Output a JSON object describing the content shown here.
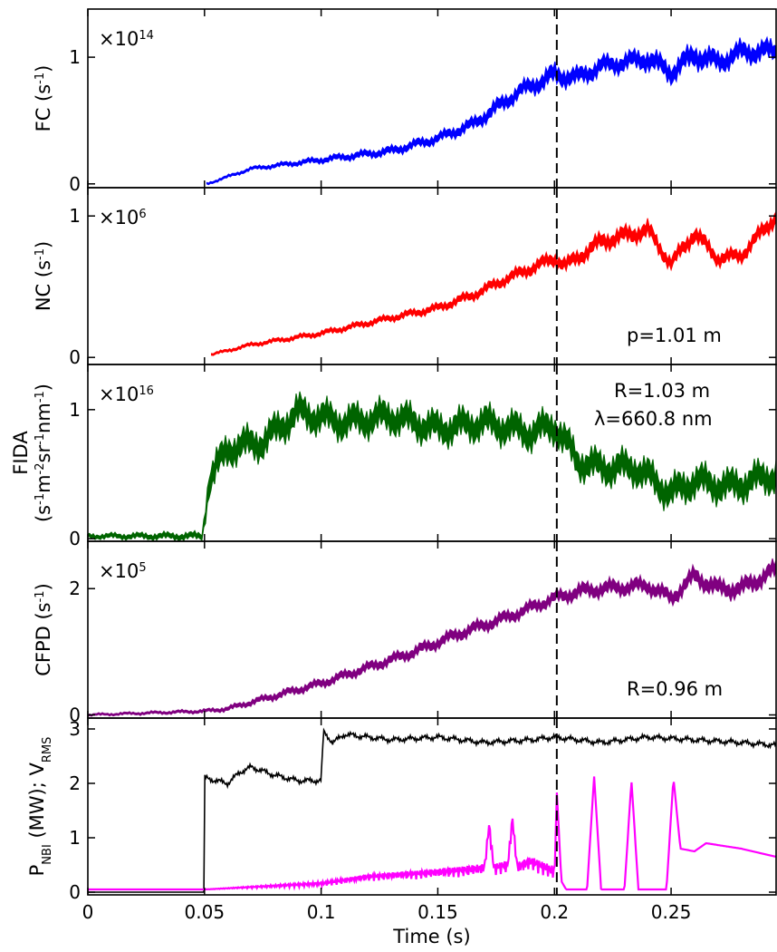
{
  "chart_data": [
    {
      "type": "area",
      "panel": "FC",
      "ylabel_main": "FC (s",
      "ylabel_sup": "-1",
      "ylabel_end": ")",
      "multiplier_base": "×10",
      "multiplier_exp": "14",
      "color": "#0000ff",
      "xlim": [
        0,
        0.295
      ],
      "ylim": [
        -0.03,
        1.38
      ],
      "yticks": [
        0,
        1
      ],
      "yticklabels": [
        "0",
        "1"
      ],
      "x": [
        0.051,
        0.07,
        0.1,
        0.13,
        0.15,
        0.165,
        0.175,
        0.185,
        0.2,
        0.21,
        0.22,
        0.23,
        0.24,
        0.25,
        0.26,
        0.27,
        0.28,
        0.295
      ],
      "values": [
        0.0,
        0.12,
        0.19,
        0.26,
        0.36,
        0.47,
        0.6,
        0.73,
        0.86,
        0.84,
        0.93,
        0.96,
        0.99,
        0.88,
        1.02,
        0.96,
        1.04,
        1.05
      ],
      "halfwidth": [
        0.01,
        0.015,
        0.025,
        0.035,
        0.04,
        0.05,
        0.06,
        0.06,
        0.08,
        0.07,
        0.07,
        0.07,
        0.08,
        0.08,
        0.09,
        0.08,
        0.08,
        0.08
      ]
    },
    {
      "type": "area",
      "panel": "NC",
      "ylabel_main": "NC (s",
      "ylabel_sup": "-1",
      "ylabel_end": ")",
      "multiplier_base": "×10",
      "multiplier_exp": "6",
      "annotation": "p=1.01 m",
      "color": "#ff0000",
      "xlim": [
        0,
        0.295
      ],
      "ylim": [
        -0.05,
        1.2
      ],
      "yticks": [
        0,
        1
      ],
      "yticklabels": [
        "0",
        "1"
      ],
      "x": [
        0.053,
        0.07,
        0.1,
        0.13,
        0.15,
        0.165,
        0.18,
        0.2,
        0.205,
        0.22,
        0.23,
        0.24,
        0.25,
        0.26,
        0.27,
        0.28,
        0.295
      ],
      "values": [
        0.02,
        0.09,
        0.17,
        0.28,
        0.35,
        0.44,
        0.56,
        0.7,
        0.65,
        0.82,
        0.86,
        0.9,
        0.66,
        0.88,
        0.7,
        0.72,
        1.0
      ],
      "halfwidth": [
        0.01,
        0.015,
        0.02,
        0.025,
        0.03,
        0.035,
        0.04,
        0.05,
        0.05,
        0.06,
        0.06,
        0.06,
        0.05,
        0.06,
        0.05,
        0.05,
        0.06
      ]
    },
    {
      "type": "area",
      "panel": "FIDA",
      "ylabel_line1": "FIDA",
      "ylabel_line2_parts": [
        "(s",
        "-1",
        "m",
        "-2",
        "sr",
        "-1",
        "nm",
        "-1",
        ")"
      ],
      "multiplier_base": "×10",
      "multiplier_exp": "16",
      "annotation_lines": [
        "R=1.03 m",
        "λ=660.8 nm"
      ],
      "color": "#006400",
      "xlim": [
        0,
        0.295
      ],
      "ylim": [
        -0.02,
        1.35
      ],
      "yticks": [
        0,
        1
      ],
      "yticklabels": [
        "0",
        "1"
      ],
      "x": [
        0.0,
        0.049,
        0.052,
        0.06,
        0.075,
        0.09,
        0.11,
        0.13,
        0.15,
        0.17,
        0.19,
        0.2,
        0.21,
        0.22,
        0.235,
        0.25,
        0.26,
        0.275,
        0.295
      ],
      "values": [
        0.02,
        0.02,
        0.45,
        0.7,
        0.75,
        0.98,
        0.9,
        0.95,
        0.85,
        0.9,
        0.82,
        0.88,
        0.6,
        0.55,
        0.55,
        0.35,
        0.45,
        0.4,
        0.5
      ],
      "halfwidth": [
        0.02,
        0.03,
        0.12,
        0.12,
        0.12,
        0.12,
        0.12,
        0.12,
        0.12,
        0.12,
        0.12,
        0.12,
        0.12,
        0.12,
        0.12,
        0.12,
        0.12,
        0.12,
        0.12
      ]
    },
    {
      "type": "area",
      "panel": "CFPD",
      "ylabel_main": "CFPD (s",
      "ylabel_sup": "-1",
      "ylabel_end": ")",
      "multiplier_base": "×10",
      "multiplier_exp": "5",
      "annotation": "R=0.96 m",
      "color": "#800080",
      "xlim": [
        0,
        0.295
      ],
      "ylim": [
        -0.05,
        2.75
      ],
      "yticks": [
        0,
        2
      ],
      "yticklabels": [
        "0",
        "2"
      ],
      "x": [
        0.0,
        0.05,
        0.06,
        0.08,
        0.1,
        0.12,
        0.14,
        0.16,
        0.18,
        0.2,
        0.21,
        0.22,
        0.24,
        0.25,
        0.26,
        0.27,
        0.28,
        0.295
      ],
      "values": [
        0.0,
        0.06,
        0.1,
        0.3,
        0.5,
        0.75,
        1.0,
        1.3,
        1.55,
        1.85,
        1.95,
        2.0,
        2.05,
        1.85,
        2.2,
        2.0,
        2.0,
        2.3
      ],
      "halfwidth": [
        0.02,
        0.03,
        0.04,
        0.06,
        0.07,
        0.08,
        0.09,
        0.1,
        0.1,
        0.1,
        0.12,
        0.12,
        0.12,
        0.12,
        0.14,
        0.14,
        0.14,
        0.14
      ]
    },
    {
      "type": "line",
      "panel": "NBI",
      "ylabel_parts": [
        "P",
        "NBI",
        " (MW); V",
        "RMS"
      ],
      "xlabel": "Time (s)",
      "xlim": [
        0,
        0.295
      ],
      "ylim": [
        -0.05,
        3.2
      ],
      "yticks": [
        0,
        1,
        2,
        3
      ],
      "yticklabels": [
        "0",
        "1",
        "2",
        "3"
      ],
      "xticks": [
        0,
        0.05,
        0.1,
        0.15,
        0.2,
        0.25
      ],
      "xticklabels": [
        "0",
        "0.05",
        "0.1",
        "0.15",
        "0.2",
        "0.25"
      ],
      "series": [
        {
          "color": "#000000",
          "x": [
            0.0,
            0.0499,
            0.05,
            0.06,
            0.065,
            0.07,
            0.08,
            0.09,
            0.1,
            0.101,
            0.105,
            0.11,
            0.13,
            0.15,
            0.17,
            0.19,
            0.2,
            0.22,
            0.24,
            0.26,
            0.28,
            0.295
          ],
          "values": [
            0.0,
            0.0,
            2.1,
            2.0,
            2.2,
            2.3,
            2.15,
            2.05,
            2.05,
            2.95,
            2.75,
            2.9,
            2.8,
            2.85,
            2.75,
            2.8,
            2.85,
            2.75,
            2.85,
            2.8,
            2.75,
            2.7
          ]
        },
        {
          "color": "#ff00ff",
          "x": [
            0.0,
            0.05,
            0.1,
            0.12,
            0.15,
            0.17,
            0.172,
            0.174,
            0.18,
            0.182,
            0.184,
            0.19,
            0.2,
            0.201,
            0.203,
            0.205,
            0.214,
            0.217,
            0.22,
            0.23,
            0.233,
            0.236,
            0.248,
            0.251,
            0.254,
            0.26,
            0.265,
            0.28,
            0.295
          ],
          "values": [
            0.05,
            0.05,
            0.1,
            0.2,
            0.25,
            0.3,
            1.1,
            0.3,
            0.35,
            1.2,
            0.3,
            0.4,
            0.2,
            1.85,
            0.2,
            0.05,
            0.05,
            2.15,
            0.05,
            0.05,
            2.05,
            0.05,
            0.05,
            2.1,
            0.8,
            0.75,
            0.9,
            0.8,
            0.65
          ]
        }
      ]
    }
  ],
  "event_time": 0.201
}
